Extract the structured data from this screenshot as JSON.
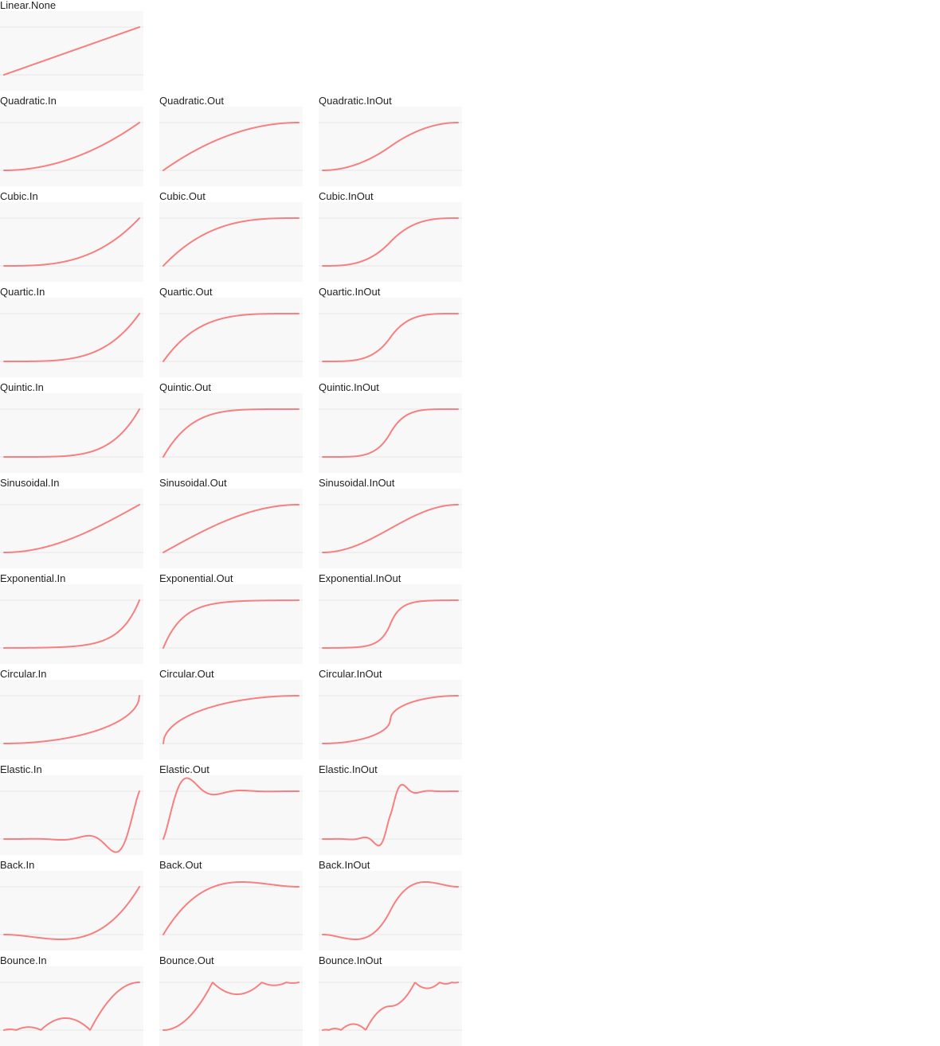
{
  "curve_color": "#f77f7f",
  "panel_color": "#f8f8f8",
  "guide_color": "#e6e6e6",
  "easings": [
    {
      "group": "Linear",
      "items": [
        "Linear.None"
      ]
    },
    {
      "group": "Quadratic",
      "items": [
        "Quadratic.In",
        "Quadratic.Out",
        "Quadratic.InOut"
      ]
    },
    {
      "group": "Cubic",
      "items": [
        "Cubic.In",
        "Cubic.Out",
        "Cubic.InOut"
      ]
    },
    {
      "group": "Quartic",
      "items": [
        "Quartic.In",
        "Quartic.Out",
        "Quartic.InOut"
      ]
    },
    {
      "group": "Quintic",
      "items": [
        "Quintic.In",
        "Quintic.Out",
        "Quintic.InOut"
      ]
    },
    {
      "group": "Sinusoidal",
      "items": [
        "Sinusoidal.In",
        "Sinusoidal.Out",
        "Sinusoidal.InOut"
      ]
    },
    {
      "group": "Exponential",
      "items": [
        "Exponential.In",
        "Exponential.Out",
        "Exponential.InOut"
      ]
    },
    {
      "group": "Circular",
      "items": [
        "Circular.In",
        "Circular.Out",
        "Circular.InOut"
      ]
    },
    {
      "group": "Elastic",
      "items": [
        "Elastic.In",
        "Elastic.Out",
        "Elastic.InOut"
      ]
    },
    {
      "group": "Back",
      "items": [
        "Back.In",
        "Back.Out",
        "Back.InOut"
      ]
    },
    {
      "group": "Bounce",
      "items": [
        "Bounce.In",
        "Bounce.Out",
        "Bounce.InOut"
      ]
    }
  ]
}
